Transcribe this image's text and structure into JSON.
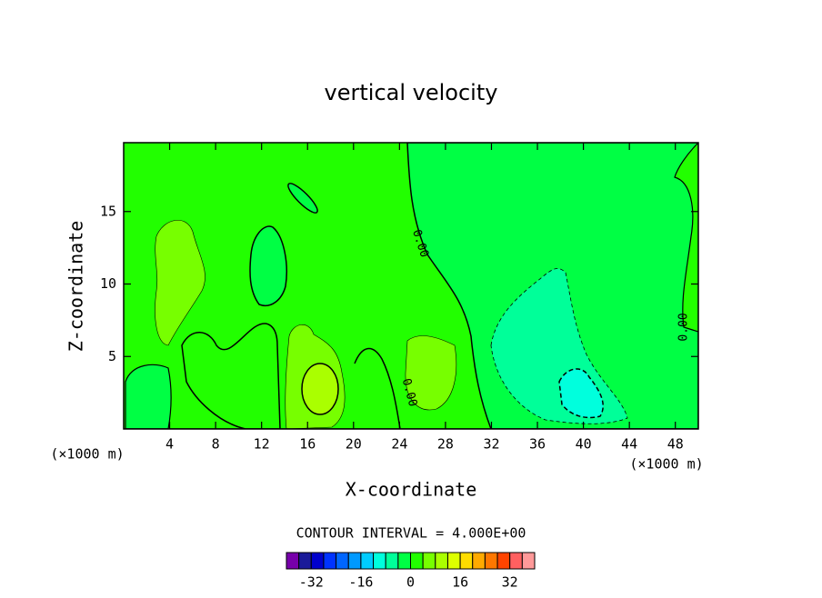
{
  "chart_data": {
    "type": "contour",
    "title": "vertical velocity",
    "xlabel": "X-coordinate",
    "ylabel": "Z-coordinate",
    "x_unit_label": "(×1000 m)",
    "xlim": [
      0,
      50
    ],
    "xticks": [
      4,
      8,
      12,
      16,
      20,
      24,
      28,
      32,
      36,
      40,
      44,
      48
    ],
    "ylim": [
      0,
      19.75
    ],
    "yticks": [
      5,
      10,
      15
    ],
    "contour_interval_label": "CONTOUR INTERVAL = 4.000E+00",
    "contour_labels": [
      {
        "value": 0,
        "label": "0.00"
      },
      {
        "value": 0,
        "label": "0.00"
      },
      {
        "value": 0,
        "label": "0.00"
      }
    ],
    "colorbar": {
      "levels": [
        -40,
        -36,
        -32,
        -28,
        -24,
        -20,
        -16,
        -12,
        -8,
        -4,
        0,
        4,
        8,
        12,
        16,
        20,
        24,
        28,
        32,
        36,
        40
      ],
      "colors": [
        "#7700aa",
        "#1a1a99",
        "#0000cc",
        "#0033ff",
        "#0066ff",
        "#0099ff",
        "#00ccff",
        "#00ffdd",
        "#00ff99",
        "#00ff44",
        "#22ff00",
        "#77ff00",
        "#aaff00",
        "#ddff00",
        "#ffdd00",
        "#ffaa00",
        "#ff7700",
        "#ff4400",
        "#ff6060",
        "#ff9999"
      ],
      "ticks": [
        -32,
        -16,
        0,
        16,
        32
      ]
    }
  }
}
